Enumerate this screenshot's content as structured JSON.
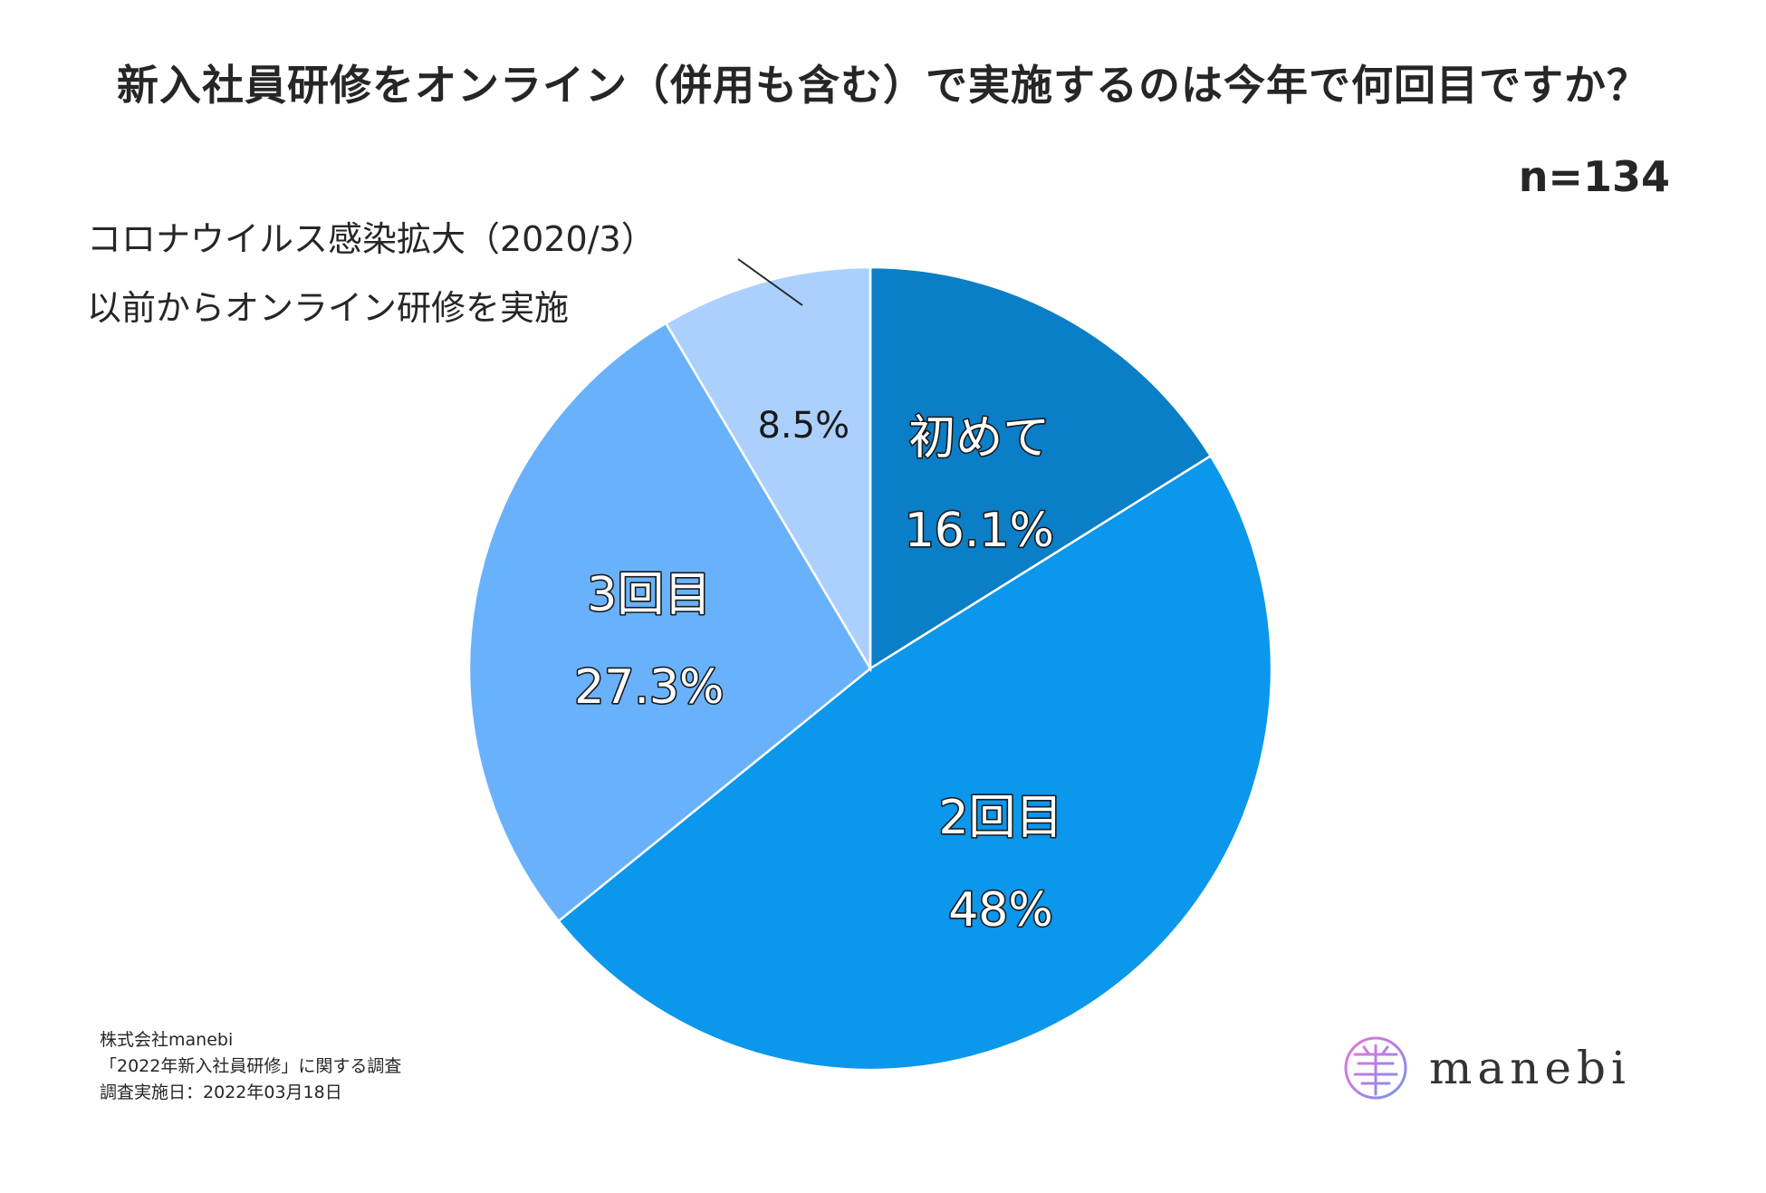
{
  "chart_data": {
    "type": "pie",
    "title": "新入社員研修をオンライン（併用も含む）で実施するのは今年で何回目ですか？",
    "sample_size": "n=134",
    "slices": [
      {
        "name": "初めて",
        "value": 16.1,
        "label": "16.1%",
        "color": "#0a7ec6"
      },
      {
        "name": "2回目",
        "value": 48,
        "label": "48%",
        "color": "#0a97ec"
      },
      {
        "name": "3回目",
        "value": 27.3,
        "label": "27.3%",
        "color": "#69b2fb"
      },
      {
        "name": "",
        "value": 8.5,
        "label": "8.5%",
        "color": "#acd0fd"
      }
    ],
    "annotation": {
      "line1": "コロナウイルス感染拡大（2020/3）",
      "line2": "以前からオンライン研修を実施"
    }
  },
  "source": {
    "company": "株式会社manebi",
    "survey": "「2022年新入社員研修」に関する調査",
    "date": "調査実施日：2022年03月18日"
  },
  "logo": {
    "text": "manebi"
  }
}
